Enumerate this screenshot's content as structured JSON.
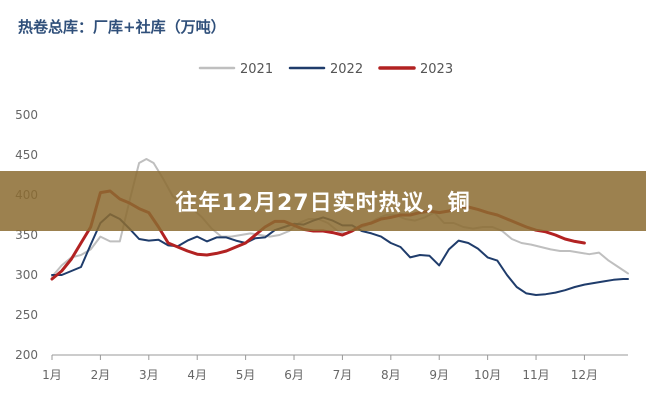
{
  "chart_data": {
    "type": "line",
    "title": "热卷总库：厂库+社库（万吨）",
    "x_labels": [
      "1月",
      "2月",
      "3月",
      "4月",
      "5月",
      "6月",
      "7月",
      "8月",
      "9月",
      "10月",
      "11月",
      "12月"
    ],
    "x_range": [
      1,
      12.9
    ],
    "ylim": [
      200,
      500
    ],
    "yticks": [
      200,
      250,
      300,
      350,
      400,
      450,
      500
    ],
    "legend_position": "top-center",
    "grid": false,
    "series": [
      {
        "name": "2021",
        "color": "#bfbfbf",
        "x": [
          1.0,
          1.2,
          1.4,
          1.6,
          1.8,
          2.0,
          2.2,
          2.4,
          2.6,
          2.8,
          2.95,
          3.1,
          3.3,
          3.5,
          3.7,
          3.9,
          4.1,
          4.3,
          4.5,
          4.7,
          4.9,
          5.1,
          5.3,
          5.5,
          5.7,
          5.9,
          6.1,
          6.3,
          6.5,
          6.7,
          6.9,
          7.1,
          7.3,
          7.5,
          7.7,
          7.9,
          8.1,
          8.3,
          8.5,
          8.7,
          8.9,
          9.1,
          9.3,
          9.5,
          9.7,
          9.9,
          10.1,
          10.3,
          10.5,
          10.7,
          10.9,
          11.1,
          11.3,
          11.5,
          11.7,
          11.9,
          12.1,
          12.3,
          12.5,
          12.7,
          12.9
        ],
        "values": [
          298,
          312,
          322,
          325,
          332,
          348,
          342,
          342,
          392,
          440,
          445,
          440,
          420,
          398,
          390,
          383,
          372,
          358,
          348,
          348,
          350,
          352,
          350,
          348,
          350,
          355,
          365,
          370,
          370,
          365,
          355,
          352,
          358,
          362,
          370,
          375,
          375,
          370,
          368,
          372,
          378,
          365,
          365,
          360,
          358,
          360,
          360,
          355,
          345,
          340,
          338,
          335,
          332,
          330,
          330,
          328,
          326,
          328,
          318,
          310,
          302
        ]
      },
      {
        "name": "2022",
        "color": "#1f3c6b",
        "x": [
          1.0,
          1.2,
          1.4,
          1.6,
          1.8,
          2.0,
          2.2,
          2.4,
          2.6,
          2.8,
          3.0,
          3.2,
          3.4,
          3.6,
          3.8,
          4.0,
          4.2,
          4.4,
          4.6,
          4.8,
          5.0,
          5.2,
          5.4,
          5.6,
          5.8,
          6.0,
          6.2,
          6.4,
          6.6,
          6.8,
          7.0,
          7.2,
          7.4,
          7.6,
          7.8,
          8.0,
          8.2,
          8.4,
          8.6,
          8.8,
          9.0,
          9.2,
          9.4,
          9.6,
          9.8,
          10.0,
          10.2,
          10.4,
          10.6,
          10.8,
          11.0,
          11.2,
          11.4,
          11.6,
          11.8,
          12.0,
          12.2,
          12.4,
          12.6,
          12.8,
          12.9
        ],
        "values": [
          300,
          300,
          305,
          310,
          338,
          365,
          376,
          370,
          358,
          345,
          343,
          344,
          337,
          336,
          343,
          348,
          342,
          347,
          347,
          343,
          340,
          346,
          347,
          356,
          360,
          364,
          363,
          368,
          372,
          368,
          362,
          362,
          355,
          352,
          348,
          340,
          335,
          322,
          325,
          324,
          312,
          332,
          343,
          340,
          333,
          322,
          318,
          300,
          285,
          277,
          275,
          276,
          278,
          281,
          285,
          288,
          290,
          292,
          294,
          295,
          295
        ]
      },
      {
        "name": "2023",
        "color": "#b22222",
        "x": [
          1.0,
          1.2,
          1.4,
          1.6,
          1.8,
          2.0,
          2.2,
          2.4,
          2.6,
          2.8,
          3.0,
          3.2,
          3.4,
          3.6,
          3.8,
          4.0,
          4.2,
          4.4,
          4.6,
          4.8,
          5.0,
          5.2,
          5.4,
          5.6,
          5.8,
          6.0,
          6.2,
          6.4,
          6.6,
          6.8,
          7.0,
          7.2,
          7.4,
          7.6,
          7.8,
          8.0,
          8.2,
          8.4,
          8.6,
          8.8,
          9.0,
          9.2,
          9.4,
          9.6,
          9.8,
          10.0,
          10.2,
          10.4,
          10.6,
          10.8,
          11.0,
          11.2,
          11.4,
          11.6,
          11.8,
          12.0
        ],
        "values": [
          295,
          305,
          320,
          340,
          360,
          403,
          405,
          395,
          390,
          383,
          378,
          360,
          340,
          335,
          330,
          326,
          325,
          327,
          330,
          335,
          340,
          350,
          360,
          367,
          367,
          362,
          357,
          355,
          355,
          353,
          350,
          355,
          362,
          365,
          370,
          372,
          375,
          375,
          378,
          380,
          378,
          380,
          385,
          385,
          382,
          378,
          375,
          370,
          365,
          360,
          356,
          354,
          350,
          345,
          342,
          340
        ]
      }
    ]
  },
  "banner": {
    "text": "往年12月27日实时热议，铜"
  }
}
